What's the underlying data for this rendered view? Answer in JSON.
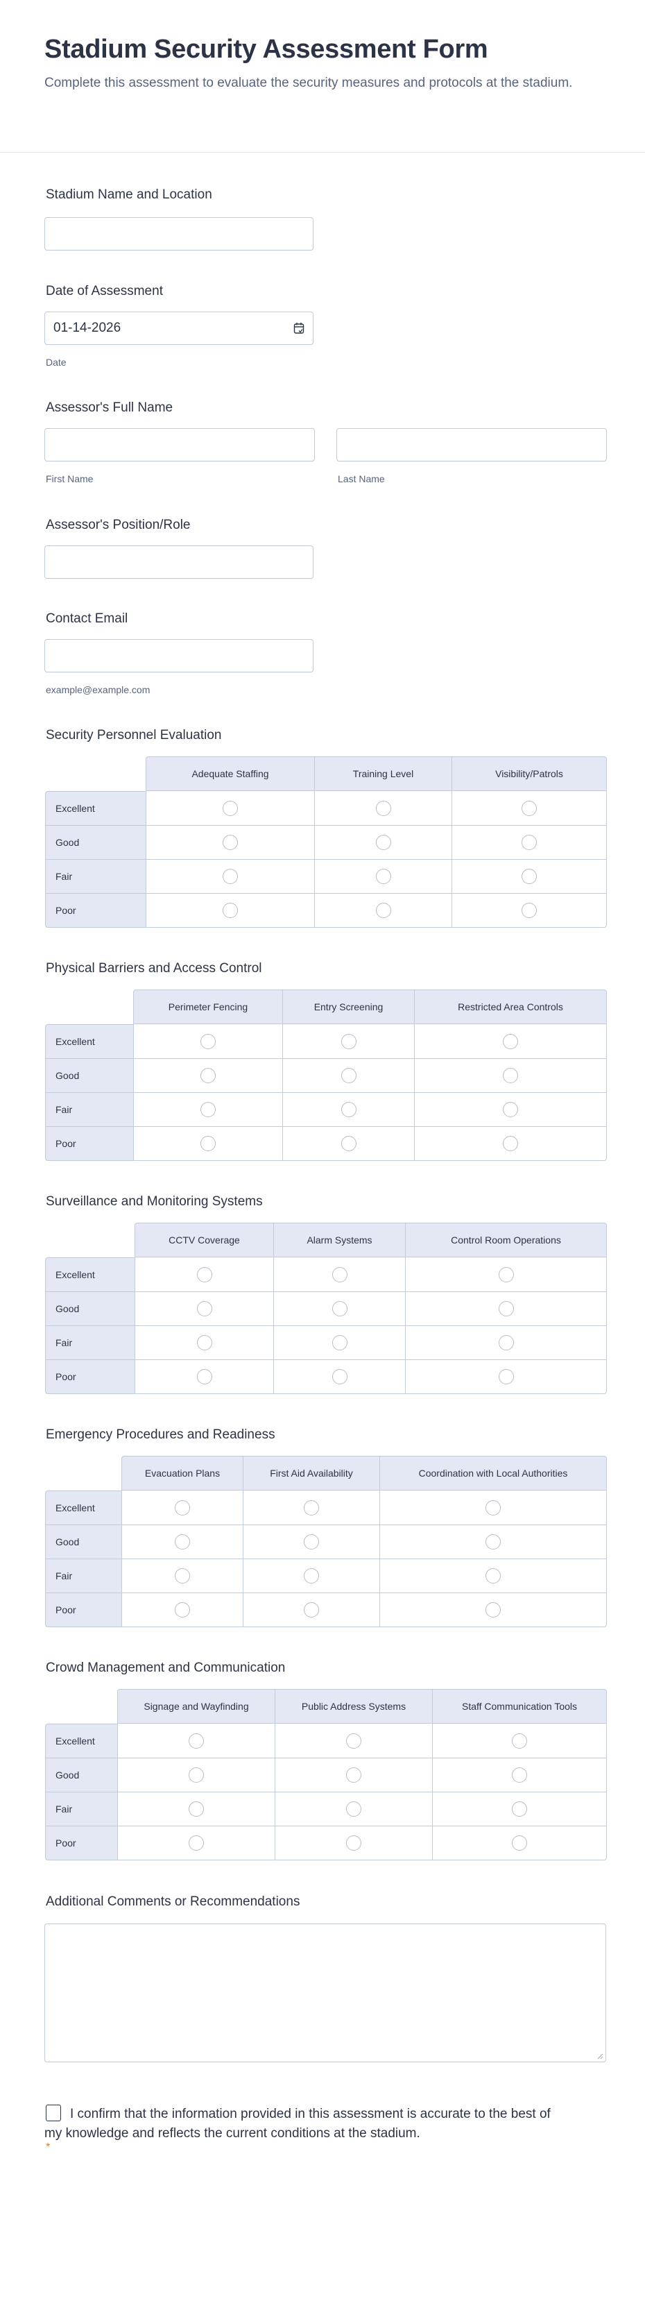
{
  "header": {
    "title": "Stadium Security Assessment Form",
    "subtitle": "Complete this assessment to evaluate the security measures and protocols at the stadium."
  },
  "fields": {
    "stadium": {
      "label": "Stadium Name and Location",
      "value": ""
    },
    "date": {
      "label": "Date of Assessment",
      "value": "01-14-2026",
      "sublabel": "Date",
      "icon": "calendar-icon"
    },
    "full_name": {
      "label": "Assessor's Full Name",
      "first_sublabel": "First Name",
      "last_sublabel": "Last Name"
    },
    "position": {
      "label": "Assessor's Position/Role",
      "value": ""
    },
    "email": {
      "label": "Contact Email",
      "sublabel": "example@example.com"
    }
  },
  "matrices": [
    {
      "title": "Security Personnel Evaluation",
      "columns": [
        "Adequate Staffing",
        "Training Level",
        "Visibility/Patrols"
      ],
      "rows": [
        "Excellent",
        "Good",
        "Fair",
        "Poor"
      ]
    },
    {
      "title": "Physical Barriers and Access Control",
      "columns": [
        "Perimeter Fencing",
        "Entry Screening",
        "Restricted Area Controls"
      ],
      "rows": [
        "Excellent",
        "Good",
        "Fair",
        "Poor"
      ]
    },
    {
      "title": "Surveillance and Monitoring Systems",
      "columns": [
        "CCTV Coverage",
        "Alarm Systems",
        "Control Room Operations"
      ],
      "rows": [
        "Excellent",
        "Good",
        "Fair",
        "Poor"
      ]
    },
    {
      "title": "Emergency Procedures and Readiness",
      "columns": [
        "Evacuation Plans",
        "First Aid Availability",
        "Coordination with Local Authorities"
      ],
      "rows": [
        "Excellent",
        "Good",
        "Fair",
        "Poor"
      ]
    },
    {
      "title": "Crowd Management and Communication",
      "columns": [
        "Signage and Wayfinding",
        "Public Address Systems",
        "Staff Communication Tools"
      ],
      "rows": [
        "Excellent",
        "Good",
        "Fair",
        "Poor"
      ]
    }
  ],
  "comments": {
    "label": "Additional Comments or Recommendations",
    "value": ""
  },
  "confirmation": {
    "text": "I confirm that the information provided in this assessment is accurate to the best of my knowledge and reflects the current conditions at the stadium.",
    "required_mark": "*",
    "checked": false
  },
  "colors": {
    "text": "#2c3345",
    "muted": "#57647e",
    "header_bg": "#e3e8f4",
    "border": "#c3cad8",
    "required": "#e07b39"
  }
}
